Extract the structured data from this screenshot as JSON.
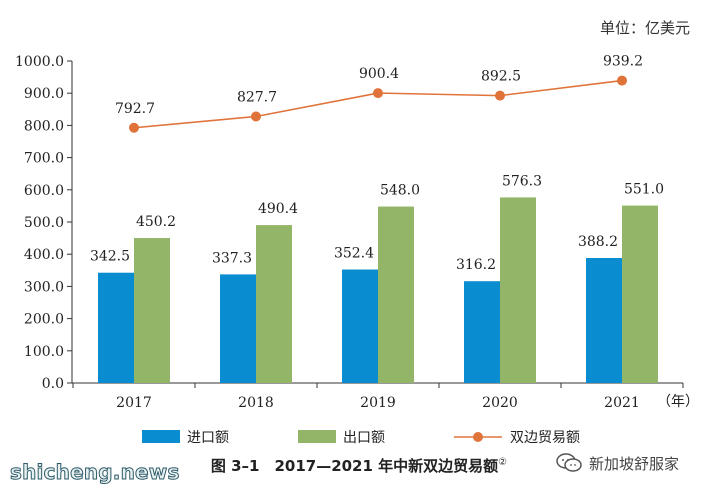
{
  "unit_label": "单位：亿美元",
  "caption": "图 3–1　2017—2021 年中新双边贸易额",
  "caption_note": "②",
  "watermark_left": "shicheng.news",
  "watermark_right": "新加坡舒服家",
  "colors": {
    "import": "#0a8dd0",
    "export": "#93b567",
    "total": "#e0733a",
    "axis": "#333333"
  },
  "chart_data": {
    "type": "bar",
    "categories": [
      "2017",
      "2018",
      "2019",
      "2020",
      "2021"
    ],
    "x_unit_label": "（年）",
    "ylim": [
      0,
      1000
    ],
    "yticks": [
      "0.0",
      "100.0",
      "200.0",
      "300.0",
      "400.0",
      "500.0",
      "600.0",
      "700.0",
      "800.0",
      "900.0",
      "1000.0"
    ],
    "grid": false,
    "legend_position": "bottom",
    "series": [
      {
        "name": "进口额",
        "type": "bar",
        "values": [
          342.5,
          337.3,
          352.4,
          316.2,
          388.2
        ],
        "labels": [
          "342.5",
          "337.3",
          "352.4",
          "316.2",
          "388.2"
        ]
      },
      {
        "name": "出口额",
        "type": "bar",
        "values": [
          450.2,
          490.4,
          548.0,
          576.3,
          551.0
        ],
        "labels": [
          "450.2",
          "490.4",
          "548.0",
          "576.3",
          "551.0"
        ]
      },
      {
        "name": "双边贸易额",
        "type": "line",
        "values": [
          792.7,
          827.7,
          900.4,
          892.5,
          939.2
        ],
        "labels": [
          "792.7",
          "827.7",
          "900.4",
          "892.5",
          "939.2"
        ]
      }
    ]
  }
}
